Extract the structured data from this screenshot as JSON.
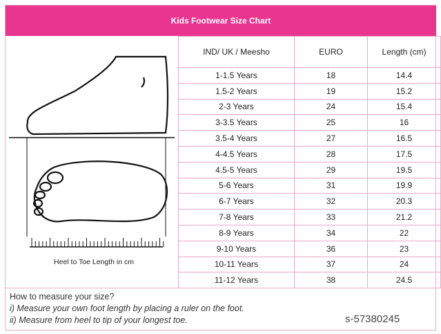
{
  "title": "Kids Footwear Size Chart",
  "columns": [
    "IND/ UK / Meesho",
    "EURO",
    "Length (cm)"
  ],
  "rows": [
    [
      "1-1.5 Years",
      "18",
      "14.4"
    ],
    [
      "1.5-2 Years",
      "19",
      "15.2"
    ],
    [
      "2-3 Years",
      "24",
      "15.4"
    ],
    [
      "3-3.5 Years",
      "25",
      "16"
    ],
    [
      "3.5-4 Years",
      "27",
      "16.5"
    ],
    [
      "4-4.5 Years",
      "28",
      "17.5"
    ],
    [
      "4.5-5 Years",
      "29",
      "19.5"
    ],
    [
      "5-6 Years",
      "31",
      "19.9"
    ],
    [
      "6-7 Years",
      "32",
      "20.3"
    ],
    [
      "7-8 Years",
      "33",
      "21.2"
    ],
    [
      "8-9 Years",
      "34",
      "22"
    ],
    [
      "9-10 Years",
      "36",
      "23"
    ],
    [
      "10-11 Years",
      "37",
      "24"
    ],
    [
      "11-12 Years",
      "38",
      "24.5"
    ]
  ],
  "ruler_label": "Heel to Toe Length in cm",
  "instructions": {
    "heading": "How to measure your size?",
    "step1": "i) Measure your own foot length by placing a ruler on the foot.",
    "step2": "ii) Measure from heel to tip of your longest toe."
  },
  "watermark": "s-57380245",
  "colors": {
    "header": "#ea3590",
    "border": "#e9a9c6"
  }
}
